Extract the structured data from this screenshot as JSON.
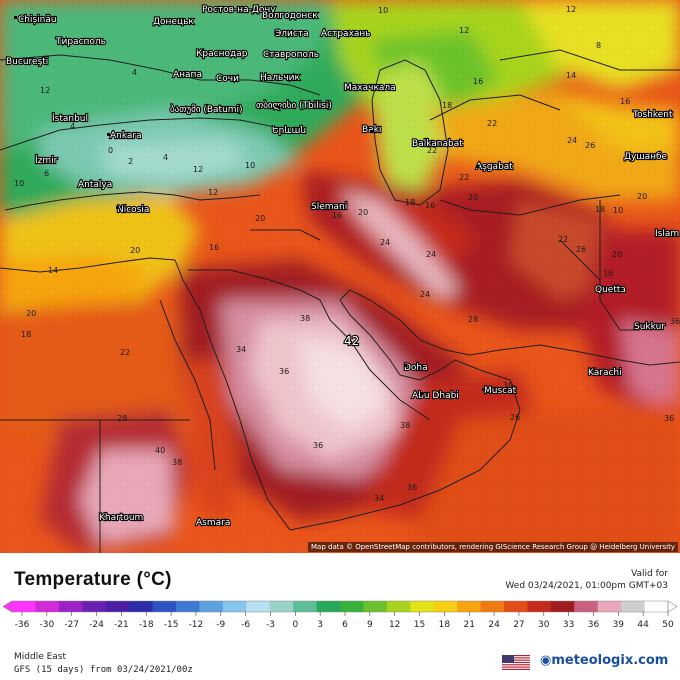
{
  "header": {
    "title": "Temperature (°C)",
    "valid_label": "Valid for",
    "valid_time": "Wed 03/24/2021, 01:00pm GMT+03"
  },
  "map": {
    "attribution": "Map data © OpenStreetMap contributors, rendering GIScience Research Group @ Heidelberg University",
    "cities": [
      "Chișinău",
      "Донецьк",
      "Ростов-на-Дону",
      "Волгодонск",
      "Тирасполь",
      "Bucureşti",
      "Краснодар",
      "Ставрополь",
      "Элиста",
      "Астрахань",
      "Анапа",
      "Сочи",
      "Нальчик",
      "Махачкала",
      "ბათუმი (Batumi)",
      "თბილისი (Tbilisi)",
      "İstanbul",
      "Ankara",
      "Երևան",
      "Bakı",
      "Balkanabat",
      "Aşgabat",
      "Toshkent",
      "Душанбе",
      "İzmir",
      "Antalya",
      "Nicosia",
      "Slemani",
      "Quetta",
      "Sukkur",
      "Karachi",
      "Doha",
      "Abu Dhabi",
      "Muscat",
      "Asmara",
      "Khartoum",
      "Islam"
    ],
    "high_value": "42"
  },
  "legend": {
    "ticks": [
      "-36",
      "-30",
      "-27",
      "-24",
      "-21",
      "-18",
      "-15",
      "-12",
      "-9",
      "-6",
      "-3",
      "0",
      "3",
      "6",
      "9",
      "12",
      "15",
      "18",
      "21",
      "24",
      "27",
      "30",
      "33",
      "36",
      "39",
      "44",
      "50"
    ],
    "colors": [
      "#ff33ff",
      "#d12bd8",
      "#9b22c6",
      "#6a20b0",
      "#4a1fa3",
      "#2c2ba8",
      "#2f52c2",
      "#3e78d3",
      "#5ca2e0",
      "#86c6ea",
      "#b7e0f0",
      "#9ad2c8",
      "#5fbe9a",
      "#27a85c",
      "#37b13a",
      "#6cc22c",
      "#a8d41e",
      "#e3e318",
      "#f6cf12",
      "#f7a410",
      "#ef7a12",
      "#e04e16",
      "#c42a1b",
      "#9e1b20",
      "#c86080",
      "#e8a8b8",
      "#cfcfcf",
      "#ffffff"
    ]
  },
  "meta": {
    "region": "Middle East",
    "model": "GFS (15 days) from  03/24/2021/00z",
    "brand": "meteologix.com"
  }
}
